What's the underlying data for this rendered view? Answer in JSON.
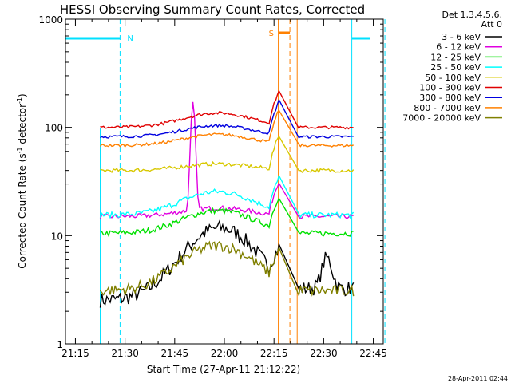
{
  "chart_data": {
    "type": "line",
    "title": "HESSI Observing Summary Count Rates, Corrected",
    "xlabel": "Start Time (27-Apr-11 21:12:22)",
    "ylabel_main": "Corrected Count Rate (s",
    "ylabel_sup1": "-1",
    "ylabel_mid": " detector",
    "ylabel_sup2": "-1",
    "ylabel_end": ")",
    "yscale": "log",
    "ylim": [
      1,
      1000
    ],
    "xlim_minutes": [
      21.2,
      22.8
    ],
    "x_tick_labels": [
      "21:15",
      "21:30",
      "21:45",
      "22:00",
      "22:15",
      "22:30",
      "22:45"
    ],
    "y_tick_labels": [
      "1",
      "10",
      "100",
      "1000"
    ],
    "legend_header": [
      "Det 1,3,4,5,6,",
      "Att 0"
    ],
    "legend_placement": "right-outside",
    "series": [
      {
        "name": "3 - 6 keV",
        "color": "#000000"
      },
      {
        "name": "6 - 12 keV",
        "color": "#e000e0"
      },
      {
        "name": "12 - 25 keV",
        "color": "#00e000"
      },
      {
        "name": "25 - 50 keV",
        "color": "#00ffff"
      },
      {
        "name": "50 - 100 keV",
        "color": "#d8c800"
      },
      {
        "name": "100 - 300 keV",
        "color": "#e00000"
      },
      {
        "name": "300 - 800 keV",
        "color": "#0000e0"
      },
      {
        "name": "800 - 7000 keV",
        "color": "#ff8000"
      },
      {
        "name": "7000 - 20000 keV",
        "color": "#808000"
      }
    ],
    "annotations": {
      "night_label": "N",
      "saa_label": "S"
    },
    "timestamp": "28-Apr-2011 02:44"
  }
}
